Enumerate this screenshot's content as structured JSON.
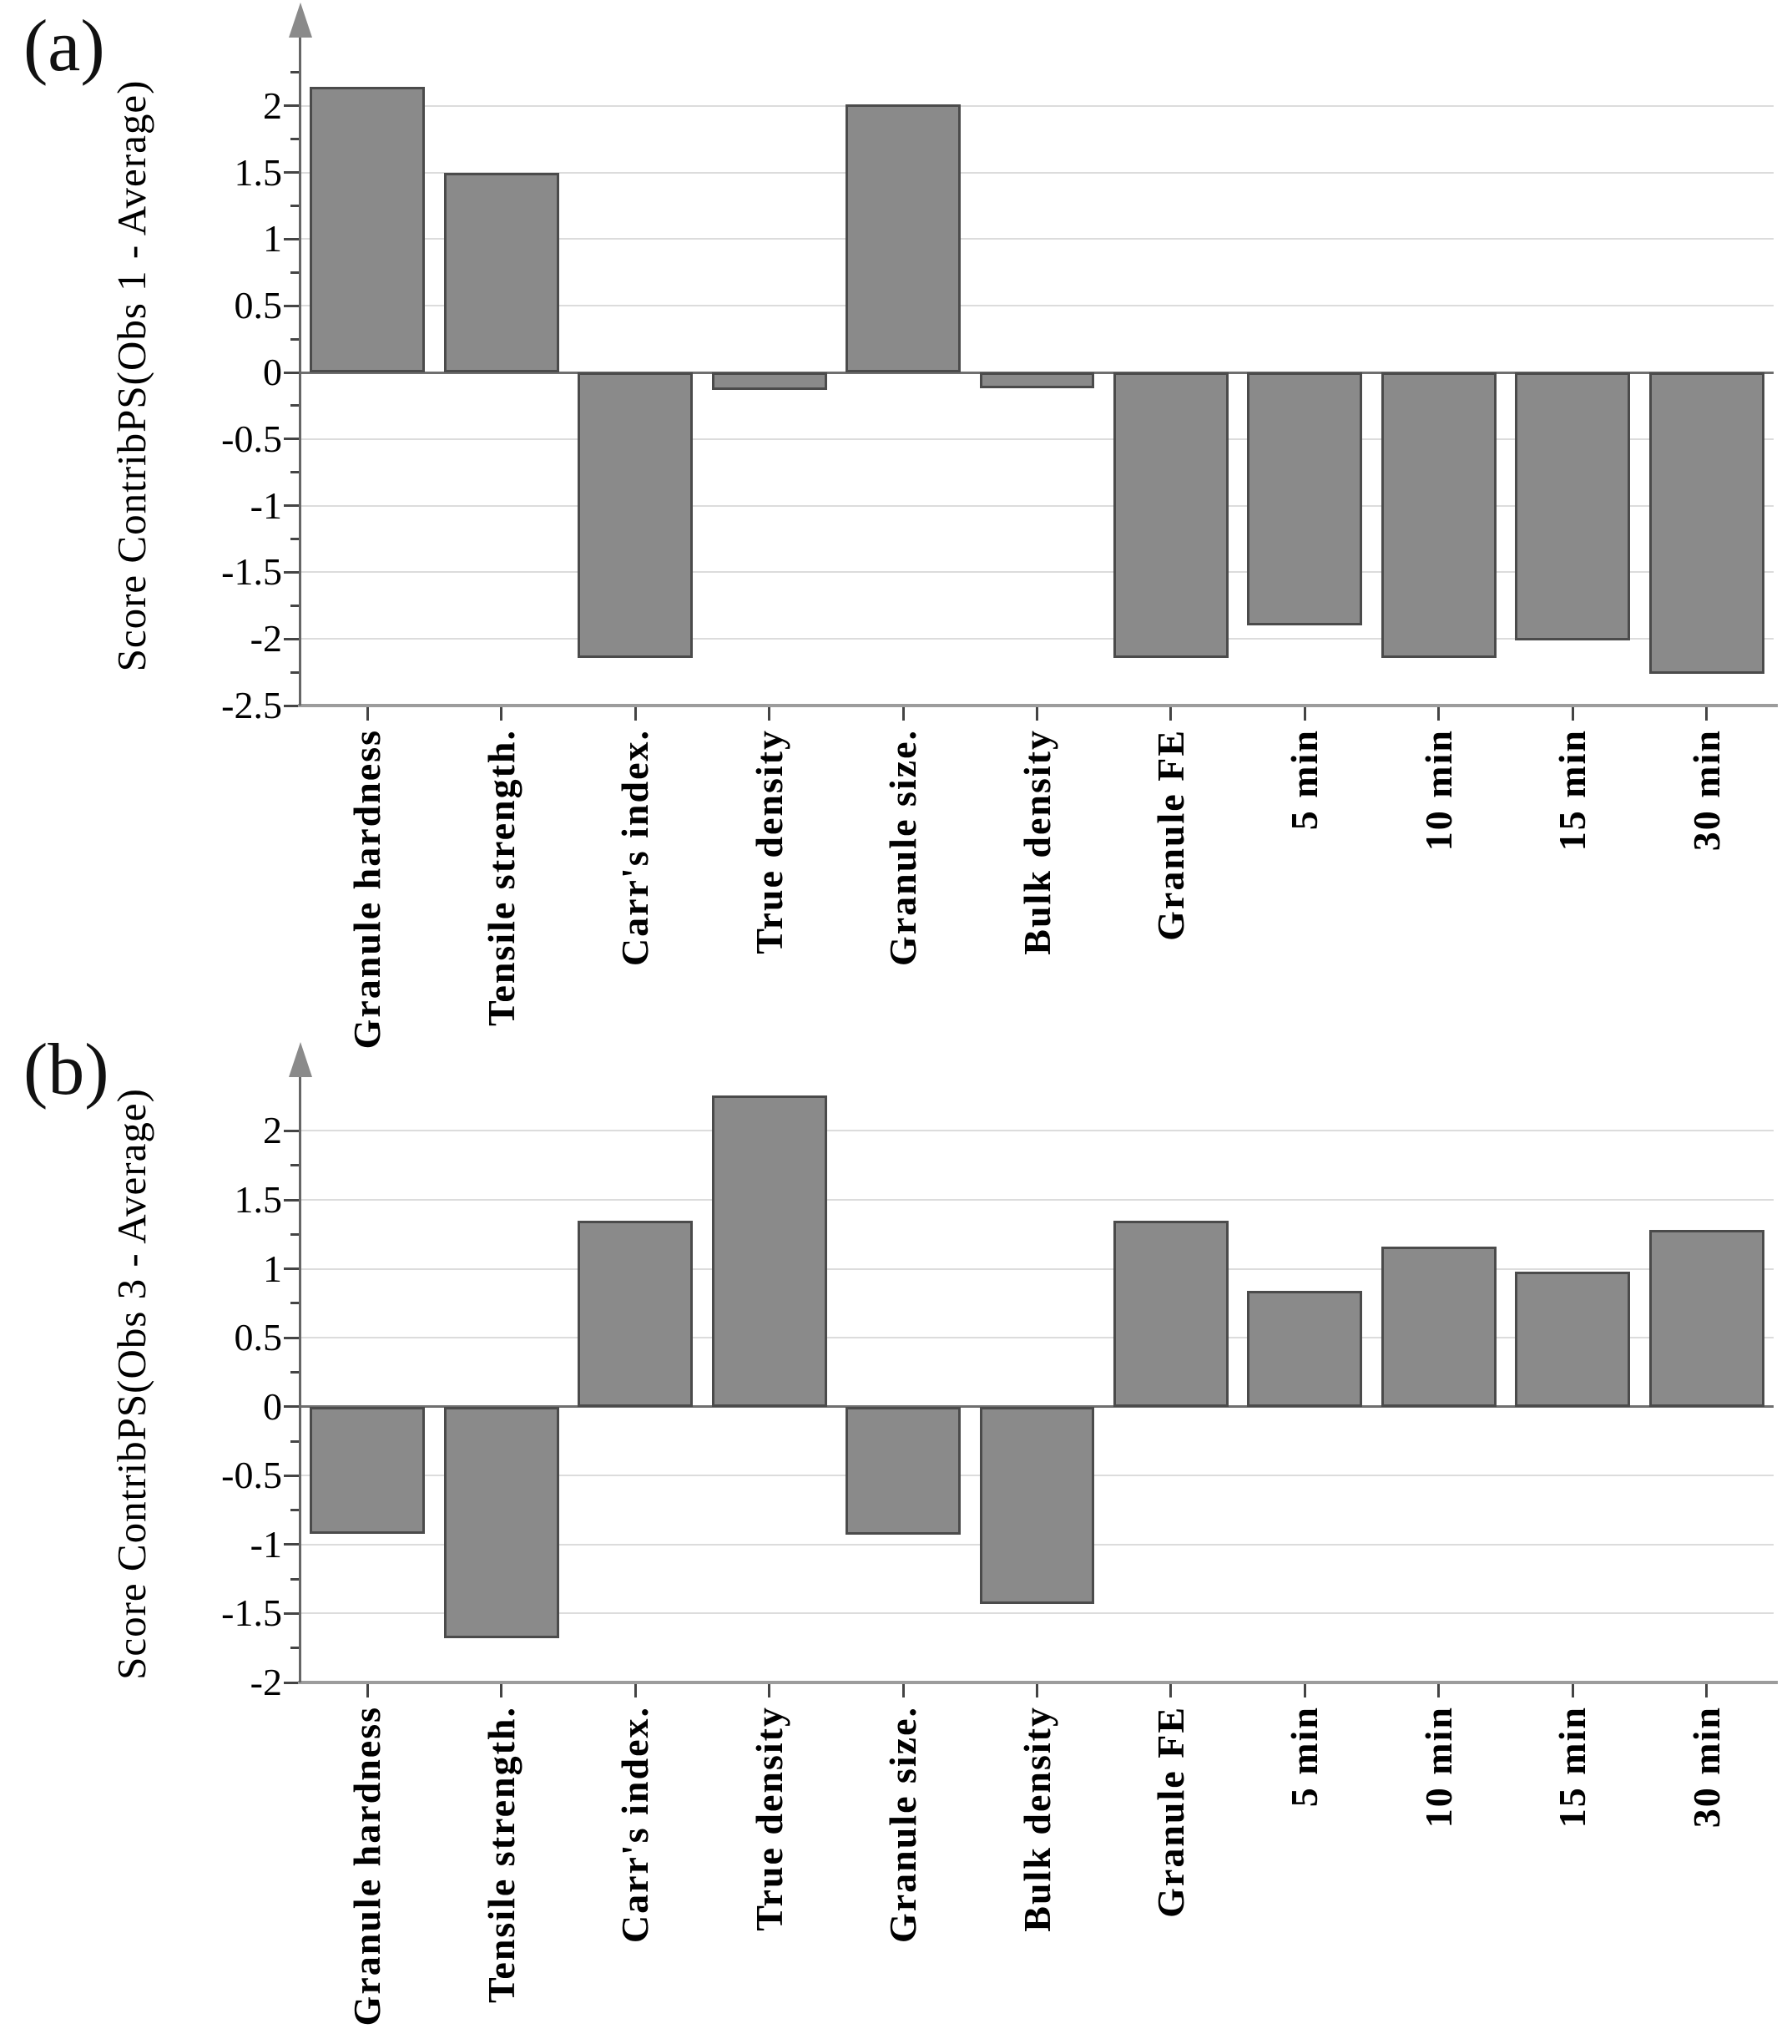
{
  "figure_type": "two-panel contribution bar plots",
  "colors": {
    "bar_fill": "#8a8a8a",
    "bar_border": "#4b4b4b",
    "gridline": "#dcdcdc",
    "zero_line": "#6f6f6f",
    "x_axis_line": "#9c9c9c",
    "y_axis_line": "#666666",
    "arrow": "#8a8a8a",
    "text": "#000000"
  },
  "chart_data": [
    {
      "type": "bar",
      "panel_label": "(a)",
      "ylabel": "Score ContribPS(Obs 1 - Average)",
      "xlabel": "",
      "categories": [
        "Granule hardness",
        "Tensile strength.",
        "Carr's index.",
        "True density",
        "Granule size.",
        "Bulk density",
        "Granule FE",
        "5 min",
        "10 min",
        "15 min",
        "30 min"
      ],
      "values": [
        2.14,
        1.5,
        -2.14,
        -0.13,
        2.01,
        -0.12,
        -2.14,
        -1.9,
        -2.14,
        -2.01,
        -2.26
      ],
      "yticks": [
        2,
        1.5,
        1,
        0.5,
        0,
        -0.5,
        -1,
        -1.5,
        -2,
        -2.5
      ],
      "ytick_major_step": 0.5,
      "ytick_minor_step": 0.25,
      "ylim": [
        -2.5,
        2.45
      ],
      "grid": "horizontal",
      "legend": "none",
      "bar_color": "#8a8a8a"
    },
    {
      "type": "bar",
      "panel_label": "(b)",
      "ylabel": "Score ContribPS(Obs 3 - Average)",
      "xlabel": "",
      "categories": [
        "Granule hardness",
        "Tensile strength.",
        "Carr's index.",
        "True density",
        "Granule size.",
        "Bulk density",
        "Granule FE",
        "5 min",
        "10 min",
        "15 min",
        "30 min"
      ],
      "values": [
        -0.92,
        -1.68,
        1.35,
        2.26,
        -0.93,
        -1.43,
        1.35,
        0.84,
        1.16,
        0.98,
        1.28
      ],
      "yticks": [
        2,
        1.5,
        1,
        0.5,
        0,
        -0.5,
        -1,
        -1.5,
        -2
      ],
      "ytick_major_step": 0.5,
      "ytick_minor_step": 0.25,
      "ylim": [
        -2,
        2.33
      ],
      "grid": "horizontal",
      "legend": "none",
      "bar_color": "#8a8a8a"
    }
  ]
}
